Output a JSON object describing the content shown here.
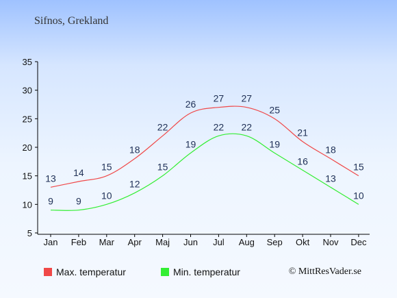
{
  "header": {
    "location": "Sifnos, Grekland"
  },
  "footer": {
    "credit": "© MittResVader.se"
  },
  "colors": {
    "max": "#f04848",
    "min": "#33ee33"
  },
  "chart_data": {
    "type": "line",
    "categories": [
      "Jan",
      "Feb",
      "Mar",
      "Apr",
      "Maj",
      "Jun",
      "Jul",
      "Aug",
      "Sep",
      "Okt",
      "Nov",
      "Dec"
    ],
    "yticks": [
      5,
      10,
      15,
      20,
      25,
      30,
      35
    ],
    "ylim": [
      5,
      35
    ],
    "grid": false,
    "legend_position": "bottom",
    "series": [
      {
        "name": "Max. temperatur",
        "values": [
          13,
          14,
          15,
          18,
          22,
          26,
          27,
          27,
          25,
          21,
          18,
          15
        ]
      },
      {
        "name": "Min. temperatur",
        "values": [
          9,
          9,
          10,
          12,
          15,
          19,
          22,
          22,
          19,
          16,
          13,
          10
        ]
      }
    ]
  }
}
